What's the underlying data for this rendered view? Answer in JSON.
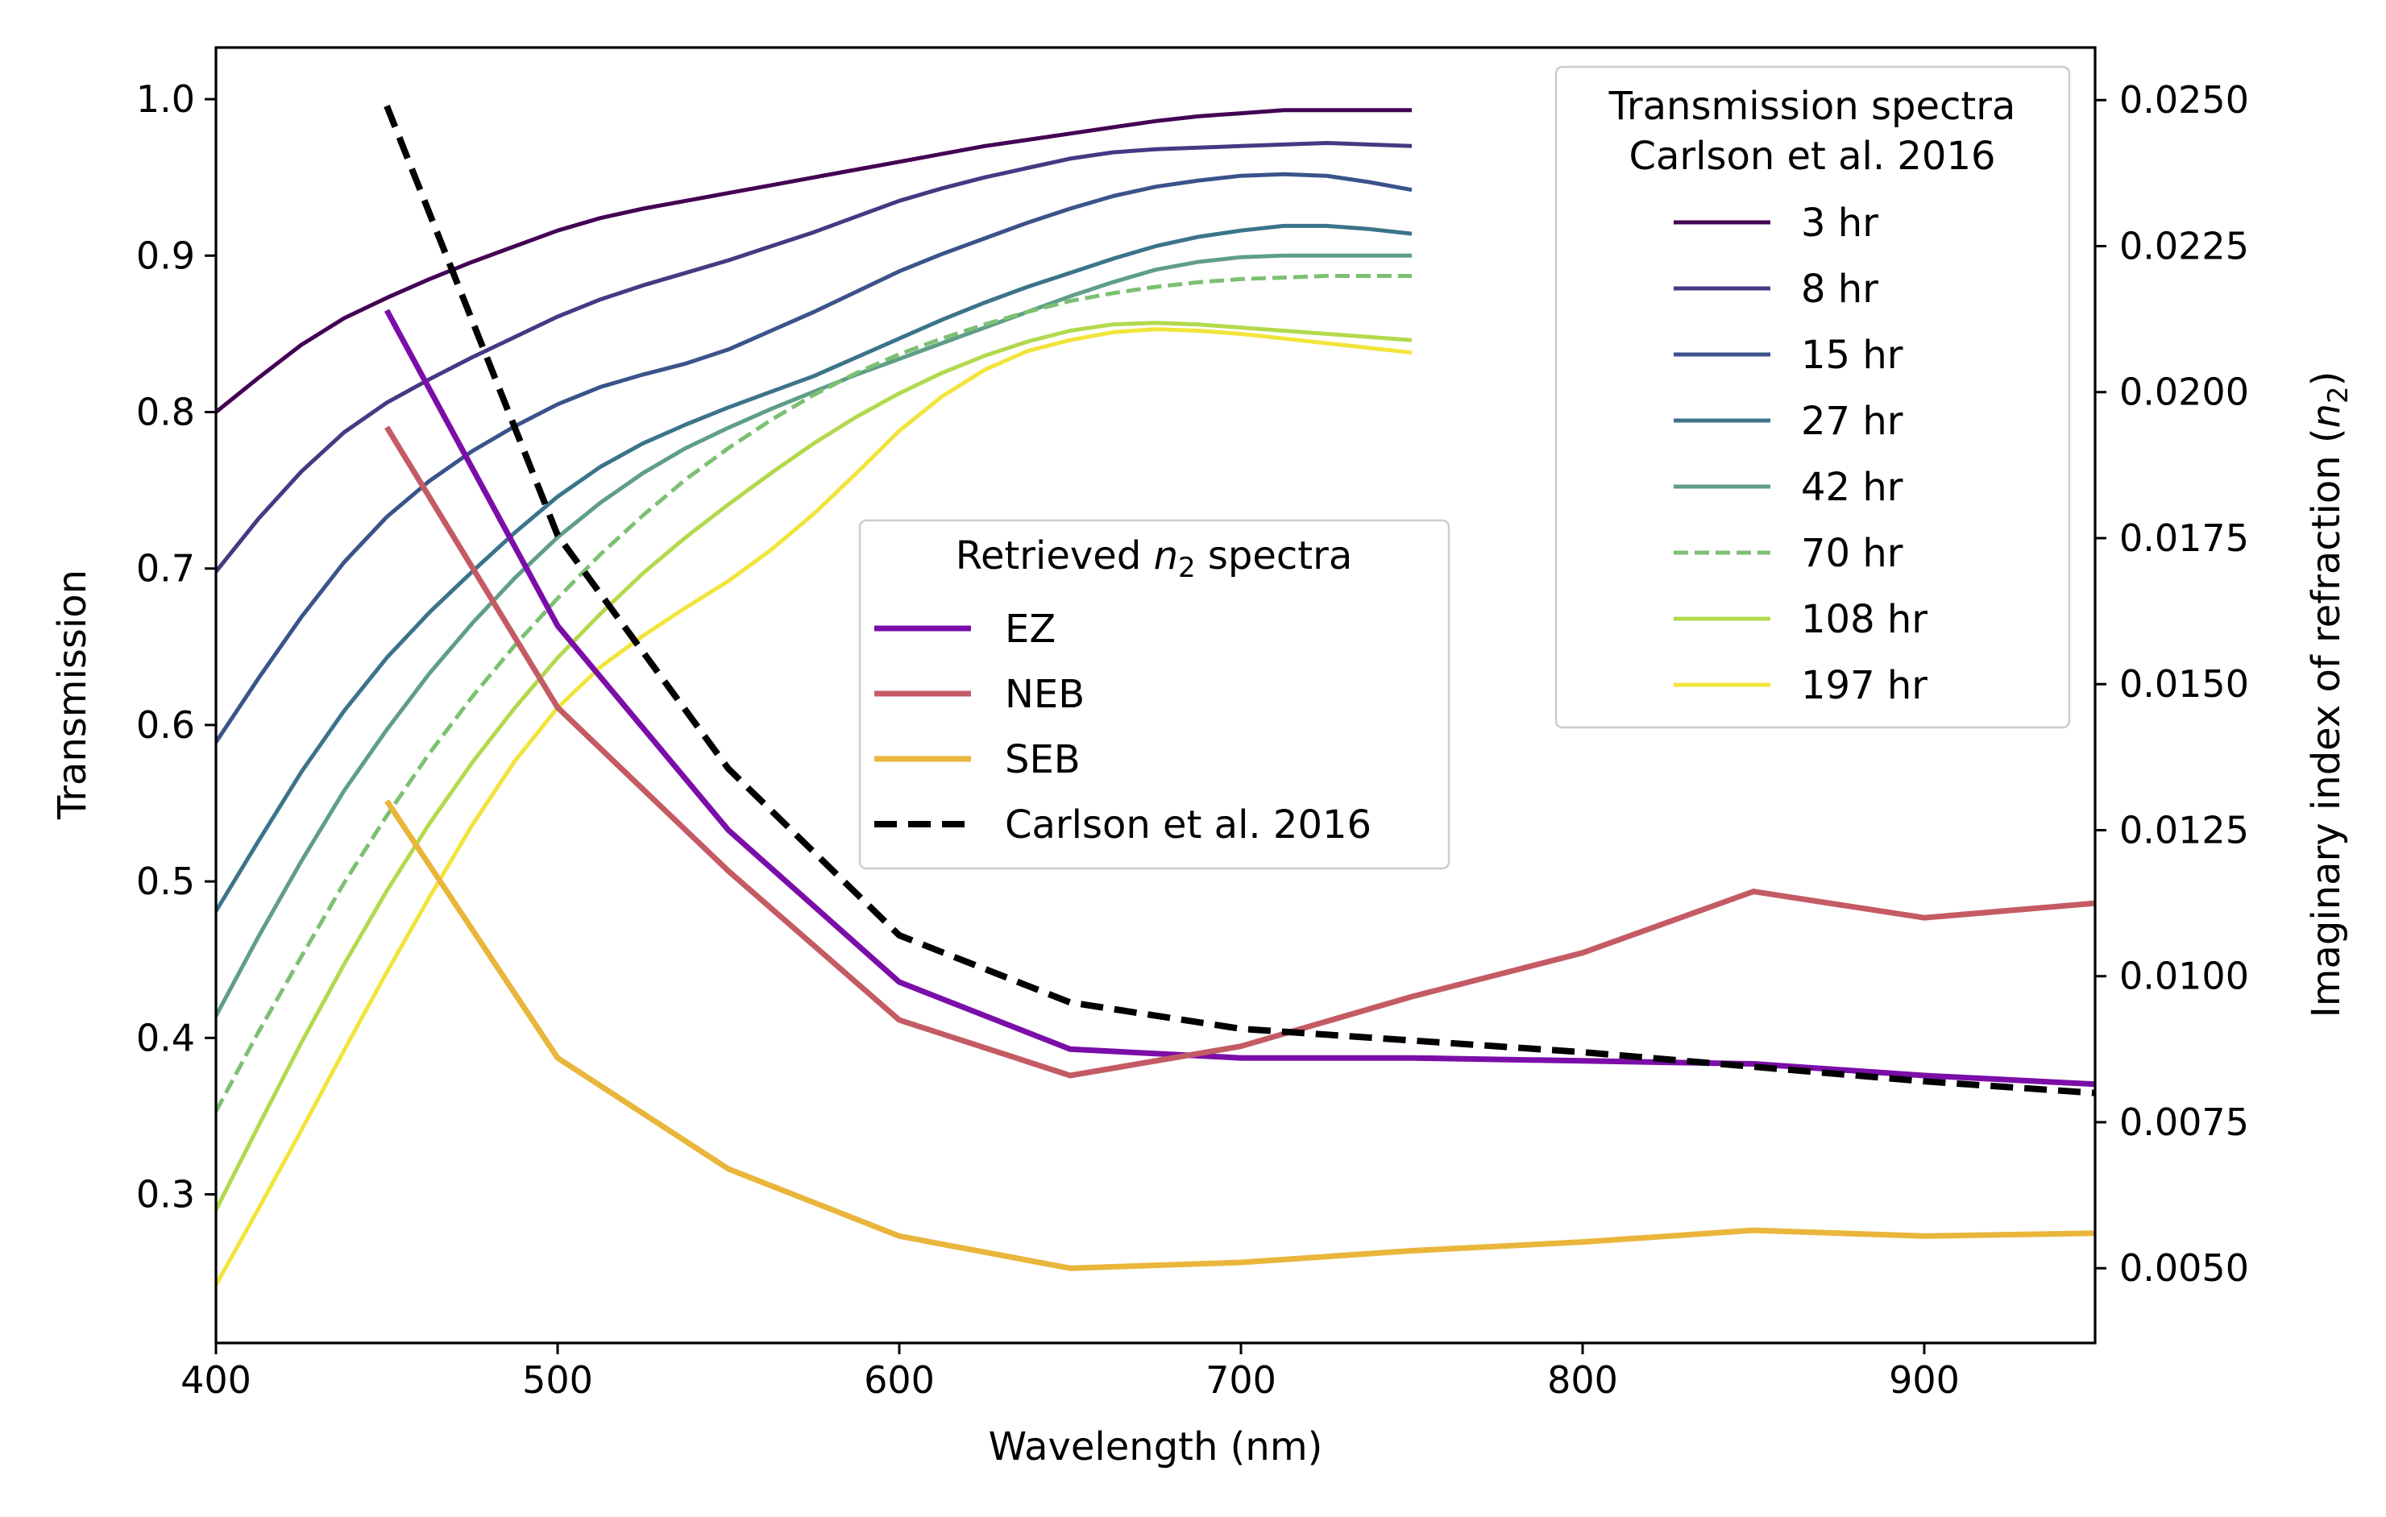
{
  "chart_data": {
    "type": "line",
    "title": "",
    "xlabel": "Wavelength (nm)",
    "ylabel": "Transmission",
    "y2label": "Imaginary index of refraction (n2)",
    "y2label_base": "Imaginary index of refraction (",
    "y2label_var": "n",
    "y2label_sub": "2",
    "y2label_close": ")",
    "xlim": [
      400,
      950
    ],
    "ylim": [
      0.205,
      1.033
    ],
    "y2lim": [
      0.00372,
      0.0259
    ],
    "xticks": [
      400,
      500,
      600,
      700,
      800,
      900
    ],
    "yticks": [
      0.3,
      0.4,
      0.5,
      0.6,
      0.7,
      0.8,
      0.9,
      1.0
    ],
    "y2ticks": [
      0.005,
      0.0075,
      0.01,
      0.0125,
      0.015,
      0.0175,
      0.02,
      0.0225,
      0.025
    ],
    "xtick_labels": [
      "400",
      "500",
      "600",
      "700",
      "800",
      "900"
    ],
    "ytick_labels": [
      "0.3",
      "0.4",
      "0.5",
      "0.6",
      "0.7",
      "0.8",
      "0.9",
      "1.0"
    ],
    "y2tick_labels": [
      "0.0050",
      "0.0075",
      "0.0100",
      "0.0125",
      "0.0150",
      "0.0175",
      "0.0200",
      "0.0225",
      "0.0250"
    ],
    "transmission_legend": {
      "title_line1": "Transmission spectra",
      "title_line2": "Carlson et al. 2016",
      "placement": "top-right"
    },
    "retrieved_legend": {
      "title_base": "Retrieved ",
      "title_var": "n",
      "title_sub": "2",
      "title_end": " spectra",
      "placement": "center"
    },
    "transmission_series": [
      {
        "name": "3 hr",
        "color": "#440154",
        "dash": false,
        "x": [
          400,
          412.5,
          425,
          437.5,
          450,
          462.5,
          475,
          487.5,
          500,
          512.5,
          525,
          537.5,
          550,
          562.5,
          575,
          587.5,
          600,
          612.5,
          625,
          637.5,
          650,
          662.5,
          675,
          687.5,
          700,
          712.5,
          725,
          737.5,
          750
        ],
        "y": [
          0.8,
          0.822,
          0.843,
          0.86,
          0.873,
          0.885,
          0.896,
          0.906,
          0.916,
          0.924,
          0.93,
          0.935,
          0.94,
          0.945,
          0.95,
          0.955,
          0.96,
          0.965,
          0.97,
          0.974,
          0.978,
          0.982,
          0.986,
          0.989,
          0.991,
          0.993,
          0.993,
          0.993,
          0.993
        ]
      },
      {
        "name": "8 hr",
        "color": "#443a83",
        "dash": false,
        "x": [
          400,
          412.5,
          425,
          437.5,
          450,
          462.5,
          475,
          487.5,
          500,
          512.5,
          525,
          537.5,
          550,
          562.5,
          575,
          587.5,
          600,
          612.5,
          625,
          637.5,
          650,
          662.5,
          675,
          687.5,
          700,
          712.5,
          725,
          737.5,
          750
        ],
        "y": [
          0.698,
          0.732,
          0.762,
          0.787,
          0.806,
          0.821,
          0.835,
          0.848,
          0.861,
          0.872,
          0.881,
          0.889,
          0.897,
          0.906,
          0.915,
          0.925,
          0.935,
          0.943,
          0.95,
          0.956,
          0.962,
          0.966,
          0.968,
          0.969,
          0.97,
          0.971,
          0.972,
          0.971,
          0.97
        ]
      },
      {
        "name": "15 hr",
        "color": "#3a538b",
        "dash": false,
        "x": [
          400,
          412.5,
          425,
          437.5,
          450,
          462.5,
          475,
          487.5,
          500,
          512.5,
          525,
          537.5,
          550,
          562.5,
          575,
          587.5,
          600,
          612.5,
          625,
          637.5,
          650,
          662.5,
          675,
          687.5,
          700,
          712.5,
          725,
          737.5,
          750
        ],
        "y": [
          0.589,
          0.63,
          0.669,
          0.704,
          0.733,
          0.756,
          0.775,
          0.791,
          0.805,
          0.816,
          0.824,
          0.831,
          0.84,
          0.852,
          0.864,
          0.877,
          0.89,
          0.901,
          0.911,
          0.921,
          0.93,
          0.938,
          0.944,
          0.948,
          0.951,
          0.952,
          0.951,
          0.947,
          0.942
        ]
      },
      {
        "name": "27 hr",
        "color": "#3b748a",
        "dash": false,
        "x": [
          400,
          412.5,
          425,
          437.5,
          450,
          462.5,
          475,
          487.5,
          500,
          512.5,
          525,
          537.5,
          550,
          562.5,
          575,
          587.5,
          600,
          612.5,
          625,
          637.5,
          650,
          662.5,
          675,
          687.5,
          700,
          712.5,
          725,
          737.5,
          750
        ],
        "y": [
          0.481,
          0.526,
          0.57,
          0.609,
          0.643,
          0.672,
          0.698,
          0.723,
          0.746,
          0.765,
          0.78,
          0.792,
          0.803,
          0.813,
          0.823,
          0.835,
          0.847,
          0.859,
          0.87,
          0.88,
          0.889,
          0.898,
          0.906,
          0.912,
          0.916,
          0.919,
          0.919,
          0.917,
          0.914
        ]
      },
      {
        "name": "42 hr",
        "color": "#5f9e88",
        "dash": false,
        "x": [
          400,
          412.5,
          425,
          437.5,
          450,
          462.5,
          475,
          487.5,
          500,
          512.5,
          525,
          537.5,
          550,
          562.5,
          575,
          587.5,
          600,
          612.5,
          625,
          637.5,
          650,
          662.5,
          675,
          687.5,
          700,
          712.5,
          725,
          737.5,
          750
        ],
        "y": [
          0.414,
          0.465,
          0.513,
          0.558,
          0.597,
          0.633,
          0.665,
          0.694,
          0.72,
          0.742,
          0.761,
          0.777,
          0.79,
          0.802,
          0.813,
          0.824,
          0.834,
          0.844,
          0.854,
          0.864,
          0.874,
          0.883,
          0.891,
          0.896,
          0.899,
          0.9,
          0.9,
          0.9,
          0.9
        ]
      },
      {
        "name": "70 hr",
        "color": "#7cc072",
        "dash": true,
        "x": [
          400,
          412.5,
          425,
          437.5,
          450,
          462.5,
          475,
          487.5,
          500,
          512.5,
          525,
          537.5,
          550,
          562.5,
          575,
          587.5,
          600,
          612.5,
          625,
          637.5,
          650,
          662.5,
          675,
          687.5,
          700,
          712.5,
          725,
          737.5,
          750
        ],
        "y": [
          0.353,
          0.404,
          0.452,
          0.499,
          0.542,
          0.582,
          0.618,
          0.651,
          0.681,
          0.709,
          0.734,
          0.757,
          0.777,
          0.795,
          0.811,
          0.825,
          0.837,
          0.847,
          0.856,
          0.864,
          0.871,
          0.876,
          0.88,
          0.883,
          0.885,
          0.886,
          0.887,
          0.887,
          0.887
        ]
      },
      {
        "name": "108 hr",
        "color": "#b3d94d",
        "dash": false,
        "x": [
          400,
          412.5,
          425,
          437.5,
          450,
          462.5,
          475,
          487.5,
          500,
          512.5,
          525,
          537.5,
          550,
          562.5,
          575,
          587.5,
          600,
          612.5,
          625,
          637.5,
          650,
          662.5,
          675,
          687.5,
          700,
          712.5,
          725,
          737.5,
          750
        ],
        "y": [
          0.29,
          0.344,
          0.397,
          0.447,
          0.494,
          0.537,
          0.576,
          0.611,
          0.643,
          0.671,
          0.697,
          0.72,
          0.741,
          0.761,
          0.78,
          0.797,
          0.812,
          0.825,
          0.836,
          0.845,
          0.852,
          0.856,
          0.857,
          0.856,
          0.854,
          0.852,
          0.85,
          0.848,
          0.846
        ]
      },
      {
        "name": "197 hr",
        "color": "#f2e43a",
        "dash": false,
        "x": [
          400,
          412.5,
          425,
          437.5,
          450,
          462.5,
          475,
          487.5,
          500,
          512.5,
          525,
          537.5,
          550,
          562.5,
          575,
          587.5,
          600,
          612.5,
          625,
          637.5,
          650,
          662.5,
          675,
          687.5,
          700,
          712.5,
          725,
          737.5,
          750
        ],
        "y": [
          0.242,
          0.291,
          0.341,
          0.392,
          0.442,
          0.49,
          0.536,
          0.577,
          0.611,
          0.637,
          0.657,
          0.675,
          0.692,
          0.712,
          0.735,
          0.761,
          0.788,
          0.81,
          0.827,
          0.839,
          0.846,
          0.851,
          0.853,
          0.852,
          0.85,
          0.847,
          0.844,
          0.841,
          0.838
        ]
      }
    ],
    "n2_series": [
      {
        "name": "EZ",
        "color": "#7b0ea8",
        "dash": false,
        "x": [
          450,
          500,
          550,
          600,
          650,
          700,
          750,
          800,
          850,
          900,
          950
        ],
        "y": [
          0.0214,
          0.016,
          0.0125,
          0.0099,
          0.00875,
          0.0086,
          0.0086,
          0.00855,
          0.0085,
          0.0083,
          0.00815
        ]
      },
      {
        "name": "NEB",
        "color": "#c45b64",
        "dash": false,
        "x": [
          450,
          500,
          550,
          600,
          650,
          700,
          750,
          800,
          850,
          900,
          950
        ],
        "y": [
          0.0194,
          0.0146,
          0.0118,
          0.00925,
          0.0083,
          0.0088,
          0.00965,
          0.0104,
          0.01145,
          0.011,
          0.01125
        ]
      },
      {
        "name": "SEB",
        "color": "#e9b53b",
        "dash": false,
        "x": [
          450,
          500,
          550,
          600,
          650,
          700,
          750,
          800,
          850,
          900,
          950
        ],
        "y": [
          0.013,
          0.0086,
          0.0067,
          0.00555,
          0.005,
          0.0051,
          0.0053,
          0.00545,
          0.00565,
          0.00555,
          0.0056
        ]
      },
      {
        "name": "Carlson et al. 2016",
        "color": "#000000",
        "dash": true,
        "x": [
          450,
          500,
          550,
          600,
          650,
          700,
          750,
          800,
          850,
          900,
          950
        ],
        "y": [
          0.0249,
          0.01755,
          0.01355,
          0.0107,
          0.00955,
          0.0091,
          0.0089,
          0.0087,
          0.00845,
          0.0082,
          0.008
        ]
      }
    ]
  }
}
